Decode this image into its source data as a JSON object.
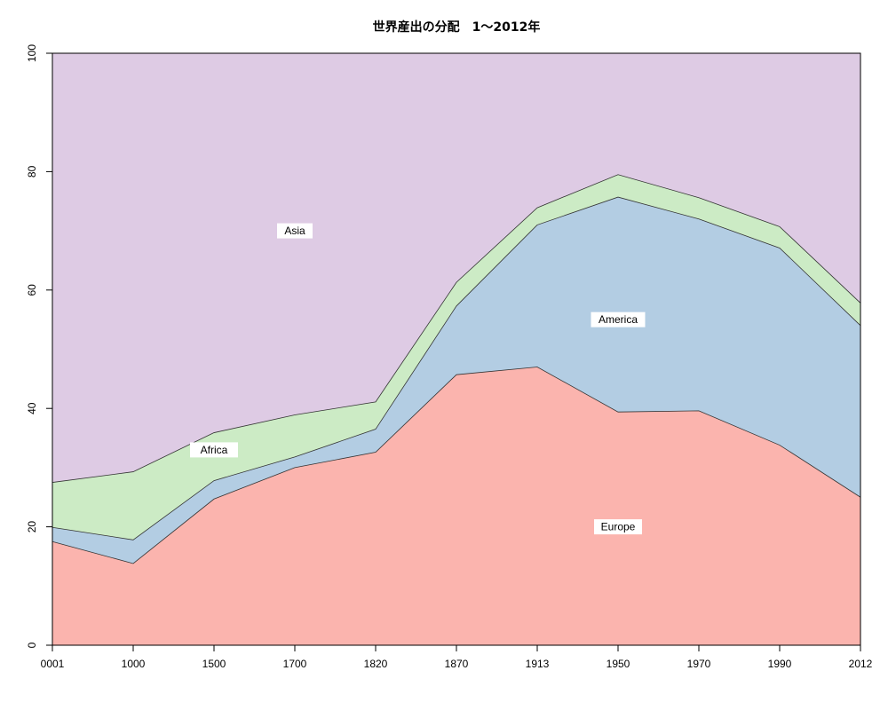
{
  "chart_data": {
    "type": "area",
    "stacked": true,
    "title": "世界産出の分配　1～2012年",
    "categories": [
      "0001",
      "1000",
      "1500",
      "1700",
      "1820",
      "1870",
      "1913",
      "1950",
      "1970",
      "1990",
      "2012"
    ],
    "ylim": [
      0,
      100
    ],
    "yticks": [
      0,
      20,
      40,
      60,
      80,
      100
    ],
    "series": [
      {
        "name": "Europe",
        "color": "#FBB4AE",
        "values": [
          17.5,
          13.8,
          24.7,
          30.0,
          32.6,
          45.7,
          47.0,
          39.4,
          39.6,
          33.8,
          25.0
        ]
      },
      {
        "name": "America",
        "color": "#B3CDE3",
        "values": [
          2.4,
          4.0,
          3.1,
          1.8,
          3.9,
          11.6,
          24.0,
          36.3,
          32.4,
          33.3,
          29.0
        ]
      },
      {
        "name": "Africa",
        "color": "#CCEBC5",
        "values": [
          7.6,
          11.5,
          8.1,
          7.1,
          4.6,
          4.0,
          2.9,
          3.8,
          3.6,
          3.6,
          3.8
        ]
      },
      {
        "name": "Asia",
        "color": "#DECBE4",
        "values": [
          72.5,
          70.7,
          64.1,
          61.1,
          58.9,
          38.7,
          26.1,
          20.5,
          24.4,
          29.3,
          42.2
        ]
      }
    ],
    "region_labels": [
      {
        "text": "Asia",
        "x_index": 3,
        "y": 70
      },
      {
        "text": "America",
        "x_index": 7,
        "y": 55
      },
      {
        "text": "Africa",
        "x_index": 2,
        "y": 33
      },
      {
        "text": "Europe",
        "x_index": 7,
        "y": 20
      }
    ],
    "grid": false,
    "legend": "none"
  }
}
